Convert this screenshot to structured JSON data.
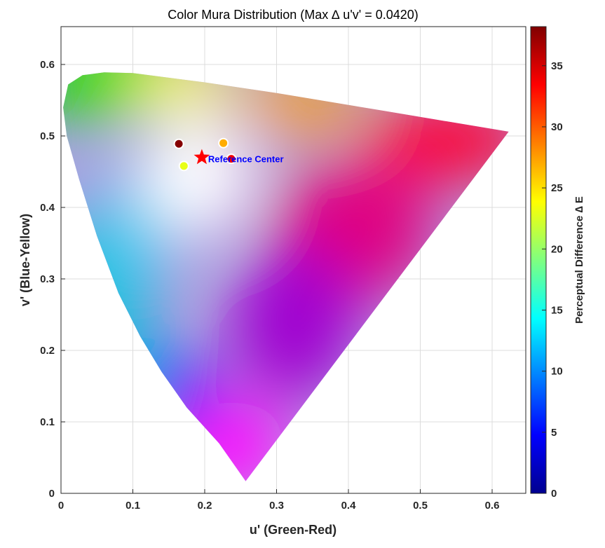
{
  "chart_data": {
    "type": "scatter",
    "title": "Color Mura Distribution (Max ∆ u'v' = 0.0420)",
    "xlabel": "u' (Green-Red)",
    "ylabel": "v' (Blue-Yellow)",
    "xlim": [
      0,
      0.65
    ],
    "ylim": [
      0,
      0.65
    ],
    "xticks": [
      "0",
      "0.1",
      "0.2",
      "0.3",
      "0.4",
      "0.5",
      "0.6"
    ],
    "yticks": [
      "0",
      "0.1",
      "0.2",
      "0.3",
      "0.4",
      "0.5",
      "0.6"
    ],
    "grid": true,
    "gamut_boundary": [
      [
        0.257,
        0.017
      ],
      [
        0.22,
        0.07
      ],
      [
        0.175,
        0.12
      ],
      [
        0.14,
        0.17
      ],
      [
        0.11,
        0.22
      ],
      [
        0.08,
        0.28
      ],
      [
        0.05,
        0.36
      ],
      [
        0.025,
        0.44
      ],
      [
        0.008,
        0.5
      ],
      [
        0.003,
        0.54
      ],
      [
        0.01,
        0.572
      ],
      [
        0.03,
        0.585
      ],
      [
        0.06,
        0.589
      ],
      [
        0.1,
        0.588
      ],
      [
        0.2,
        0.575
      ],
      [
        0.3,
        0.56
      ],
      [
        0.45,
        0.535
      ],
      [
        0.623,
        0.506
      ]
    ],
    "points": [
      {
        "u": 0.164,
        "v": 0.489,
        "deltaE": 38
      },
      {
        "u": 0.226,
        "v": 0.49,
        "deltaE": 27
      },
      {
        "u": 0.171,
        "v": 0.458,
        "deltaE": 23
      },
      {
        "u": 0.237,
        "v": 0.468,
        "deltaE": 34
      }
    ],
    "reference": {
      "u": 0.196,
      "v": 0.47,
      "label": "Reference Center"
    },
    "colorbar": {
      "label": "Perceptual Difference ∆ E",
      "range": [
        0,
        38.2
      ],
      "ticks": [
        "0",
        "5",
        "10",
        "15",
        "20",
        "25",
        "30",
        "35"
      ],
      "colormap": "jet"
    }
  }
}
